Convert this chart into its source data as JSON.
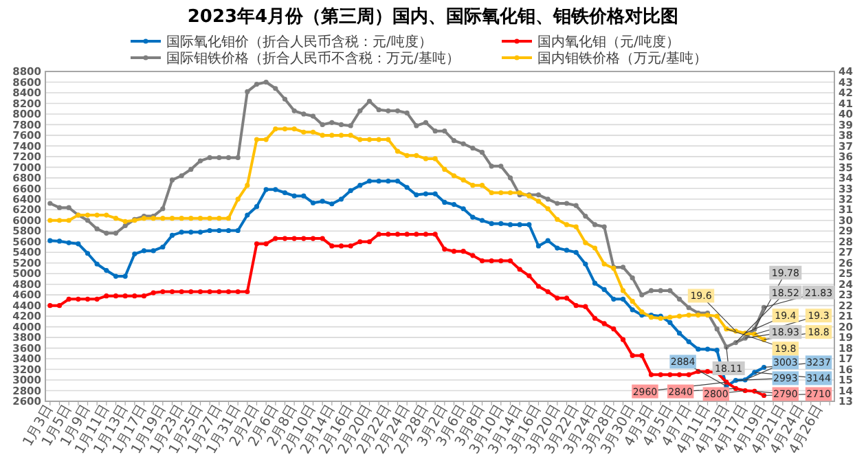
{
  "chart_data": {
    "type": "line",
    "title": "2023年4月份（第三周）国内、国际氧化钼、钼铁价格对比图",
    "categories": [
      "1月3日",
      null,
      "1月5日",
      null,
      "1月9日",
      null,
      "1月11日",
      null,
      "1月13日",
      null,
      "1月17日",
      null,
      "1月19日",
      null,
      "1月23日",
      null,
      "1月25日",
      null,
      "1月27日",
      null,
      "1月31日",
      null,
      "2月2日",
      null,
      "2月6日",
      null,
      "2月8日",
      null,
      "2月10日",
      null,
      "2月14日",
      null,
      "2月16日",
      null,
      "2月20日",
      null,
      "2月22日",
      null,
      "2月24日",
      null,
      "2月28日",
      null,
      "3月2日",
      null,
      "3月6日",
      null,
      "3月8日",
      null,
      "3月10日",
      null,
      "3月14日",
      null,
      "3月16日",
      null,
      "3月20日",
      null,
      "3月22日",
      null,
      "3月24日",
      null,
      "3月28日",
      null,
      "3月30日",
      null,
      "4月3日",
      null,
      "4月5日",
      null,
      "4月7日",
      null,
      "4月11日",
      null,
      "4月13日",
      null,
      "4月17日",
      null,
      "4月19日",
      null,
      "4月21日",
      null,
      "4月24日",
      null,
      "4月26日",
      null
    ],
    "series": [
      {
        "name": "国际氧化钼价（折合人民币含税：元/吨度）",
        "color": "#0070c0",
        "values": [
          5620,
          5610,
          5580,
          5560,
          5380,
          5180,
          5060,
          4950,
          4950,
          5370,
          5430,
          5430,
          5500,
          5720,
          5780,
          5780,
          5780,
          5810,
          5810,
          5810,
          5810,
          6100,
          6260,
          6580,
          6580,
          6520,
          6460,
          6460,
          6330,
          6360,
          6310,
          6400,
          6560,
          6660,
          6740,
          6740,
          6740,
          6740,
          6620,
          6480,
          6500,
          6500,
          6340,
          6300,
          6220,
          6060,
          6000,
          5940,
          5940,
          5920,
          5920,
          5920,
          5520,
          5620,
          5480,
          5440,
          5400,
          5180,
          4820,
          4700,
          4520,
          4520,
          4320,
          4220,
          4220,
          4200,
          4080,
          3880,
          3720,
          3580,
          3580,
          3560,
          2884,
          2993,
          3003,
          3144,
          3237,
          null,
          null,
          null,
          null,
          null,
          null,
          null
        ],
        "value_labels": [
          null,
          null,
          null,
          null,
          null,
          null,
          null,
          null,
          null,
          null,
          null,
          null,
          null,
          null,
          null,
          null,
          null,
          null,
          null,
          null,
          null,
          null,
          null,
          null,
          null,
          null,
          null,
          null,
          null,
          null,
          null,
          null,
          null,
          null,
          null,
          null,
          null,
          null,
          null,
          null,
          null,
          null,
          null,
          null,
          null,
          null,
          null,
          null,
          null,
          null,
          null,
          null,
          null,
          null,
          null,
          null,
          null,
          null,
          null,
          null,
          null,
          null,
          null,
          null,
          null,
          null,
          null,
          null,
          null,
          null,
          null,
          null,
          "2884",
          "2993",
          "3003",
          "3144",
          "3237",
          null,
          null,
          null,
          null,
          null,
          null,
          null
        ]
      },
      {
        "name": "国内氧化钼（元/吨度）",
        "color": "#ff0000",
        "values": [
          4400,
          4400,
          4520,
          4520,
          4520,
          4520,
          4580,
          4580,
          4580,
          4580,
          4580,
          4640,
          4660,
          4660,
          4660,
          4660,
          4660,
          4660,
          4660,
          4660,
          4660,
          4660,
          5560,
          5560,
          5660,
          5660,
          5660,
          5660,
          5660,
          5660,
          5520,
          5520,
          5520,
          5600,
          5600,
          5740,
          5740,
          5740,
          5740,
          5740,
          5740,
          5740,
          5460,
          5420,
          5420,
          5340,
          5240,
          5240,
          5240,
          5240,
          5080,
          4960,
          4760,
          4660,
          4540,
          4540,
          4400,
          4380,
          4160,
          4060,
          3960,
          3760,
          3460,
          3460,
          3100,
          3100,
          3100,
          3100,
          3100,
          3160,
          3160,
          3140,
          2960,
          2840,
          2800,
          2790,
          2710,
          null,
          null,
          null,
          null,
          null,
          null,
          null
        ],
        "value_labels": [
          null,
          null,
          null,
          null,
          null,
          null,
          null,
          null,
          null,
          null,
          null,
          null,
          null,
          null,
          null,
          null,
          null,
          null,
          null,
          null,
          null,
          null,
          null,
          null,
          null,
          null,
          null,
          null,
          null,
          null,
          null,
          null,
          null,
          null,
          null,
          null,
          null,
          null,
          null,
          null,
          null,
          null,
          null,
          null,
          null,
          null,
          null,
          null,
          null,
          null,
          null,
          null,
          null,
          null,
          null,
          null,
          null,
          null,
          null,
          null,
          null,
          null,
          null,
          null,
          null,
          null,
          null,
          null,
          null,
          null,
          null,
          null,
          "2960",
          "2840",
          "2800",
          "2790",
          "2710",
          null,
          null,
          null,
          null,
          null,
          null,
          null
        ]
      },
      {
        "name": "国际钼铁价格（折合人民币不含税：万元/基吨）",
        "color": "#7f7f7f",
        "axis": "y2",
        "values": [
          31.6,
          31.2,
          31.2,
          30.5,
          30.0,
          29.2,
          28.8,
          28.8,
          29.5,
          30.1,
          30.4,
          30.4,
          31.1,
          33.8,
          34.2,
          34.8,
          35.6,
          35.9,
          35.9,
          35.9,
          35.9,
          42.1,
          42.8,
          43.0,
          42.4,
          41.4,
          40.3,
          40.0,
          39.8,
          39.0,
          39.2,
          39.0,
          38.9,
          40.3,
          41.2,
          40.4,
          40.3,
          40.3,
          40.1,
          38.9,
          39.2,
          38.4,
          38.4,
          37.5,
          37.2,
          36.8,
          36.4,
          35.1,
          35.1,
          34.0,
          32.4,
          32.4,
          32.4,
          32.0,
          31.6,
          31.6,
          31.4,
          30.4,
          29.6,
          29.4,
          25.6,
          25.6,
          24.6,
          23.0,
          23.4,
          23.4,
          23.4,
          22.6,
          21.8,
          21.3,
          21.3,
          19.8,
          18.11,
          18.52,
          18.93,
          19.78,
          21.83,
          null,
          null,
          null,
          null,
          null,
          null,
          null
        ],
        "value_labels": [
          null,
          null,
          null,
          null,
          null,
          null,
          null,
          null,
          null,
          null,
          null,
          null,
          null,
          null,
          null,
          null,
          null,
          null,
          null,
          null,
          null,
          null,
          null,
          null,
          null,
          null,
          null,
          null,
          null,
          null,
          null,
          null,
          null,
          null,
          null,
          null,
          null,
          null,
          null,
          null,
          null,
          null,
          null,
          null,
          null,
          null,
          null,
          null,
          null,
          null,
          null,
          null,
          null,
          null,
          null,
          null,
          null,
          null,
          null,
          null,
          null,
          null,
          null,
          null,
          null,
          null,
          null,
          null,
          null,
          null,
          null,
          null,
          "18.11",
          "18.52",
          "18.93",
          "19.78",
          "21.83",
          null,
          null,
          null,
          null,
          null,
          null,
          null
        ]
      },
      {
        "name": "国内钼铁价格（万元/基吨）",
        "color": "#ffc000",
        "axis": "y2",
        "values": [
          30.0,
          30.0,
          30.0,
          30.5,
          30.5,
          30.5,
          30.5,
          30.2,
          29.9,
          30.0,
          30.2,
          30.2,
          30.2,
          30.2,
          30.2,
          30.2,
          30.2,
          30.2,
          30.2,
          30.2,
          32.0,
          33.3,
          37.6,
          37.6,
          38.6,
          38.6,
          38.6,
          38.3,
          38.3,
          38.0,
          38.0,
          38.0,
          38.0,
          37.6,
          37.6,
          37.6,
          37.6,
          36.5,
          36.1,
          36.1,
          35.8,
          35.8,
          34.8,
          34.2,
          33.8,
          33.3,
          33.3,
          32.6,
          32.6,
          32.6,
          32.6,
          32.3,
          31.8,
          31.1,
          30.1,
          29.6,
          29.4,
          27.9,
          27.4,
          25.9,
          25.5,
          23.4,
          22.4,
          21.4,
          20.9,
          20.8,
          20.9,
          21.0,
          21.1,
          21.1,
          21.1,
          21.0,
          19.8,
          19.6,
          19.4,
          19.3,
          18.8,
          null,
          null,
          null,
          null,
          null,
          null,
          null
        ],
        "value_labels": [
          null,
          null,
          null,
          null,
          null,
          null,
          null,
          null,
          null,
          null,
          null,
          null,
          null,
          null,
          null,
          null,
          null,
          null,
          null,
          null,
          null,
          null,
          null,
          null,
          null,
          null,
          null,
          null,
          null,
          null,
          null,
          null,
          null,
          null,
          null,
          null,
          null,
          null,
          null,
          null,
          null,
          null,
          null,
          null,
          null,
          null,
          null,
          null,
          null,
          null,
          null,
          null,
          null,
          null,
          null,
          null,
          null,
          null,
          null,
          null,
          null,
          null,
          null,
          null,
          null,
          null,
          null,
          null,
          null,
          null,
          null,
          null,
          "19.8",
          "19.6",
          "19.4",
          "19.3",
          "18.8",
          null,
          null,
          null,
          null,
          null,
          null,
          null
        ]
      }
    ],
    "ylim": [
      2600,
      8800
    ],
    "yticks": [
      2600,
      2800,
      3000,
      3200,
      3400,
      3600,
      3800,
      4000,
      4200,
      4400,
      4600,
      4800,
      5000,
      5200,
      5400,
      5600,
      5800,
      6000,
      6200,
      6400,
      6600,
      6800,
      7000,
      7200,
      7400,
      7600,
      7800,
      8000,
      8200,
      8400,
      8600,
      8800
    ],
    "y2lim": [
      13,
      44
    ],
    "y2ticks": [
      13,
      14,
      15,
      16,
      17,
      18,
      19,
      20,
      21,
      22,
      23,
      24,
      25,
      26,
      27,
      28,
      29,
      30,
      31,
      32,
      33,
      34,
      35,
      36,
      37,
      38,
      39,
      40,
      41,
      42,
      43,
      44
    ],
    "grid": "y",
    "legend": "top",
    "marker": "circle"
  }
}
